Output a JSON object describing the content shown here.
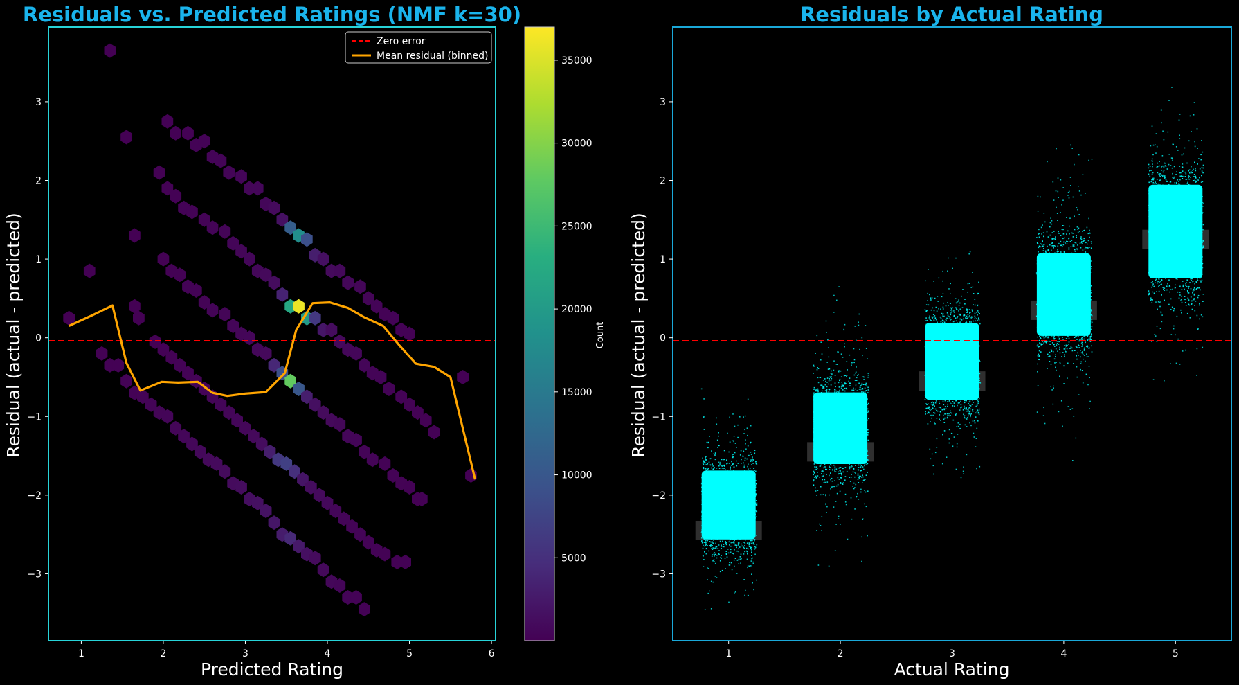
{
  "chart_data": [
    {
      "type": "hexbin",
      "title": "Residuals vs. Predicted Ratings (NMF k=30)",
      "xlabel": "Predicted Rating",
      "ylabel": "Residual (actual - predicted)",
      "xlim": [
        0.6,
        6.05
      ],
      "ylim": [
        -3.85,
        3.95
      ],
      "xticks": [
        1,
        2,
        3,
        4,
        5,
        6
      ],
      "yticks": [
        -3,
        -2,
        -1,
        0,
        1,
        2,
        3
      ],
      "grid": false,
      "legend": {
        "position": "top-right",
        "entries": [
          {
            "label": "Zero error",
            "color": "#ff0000",
            "style": "dashed"
          },
          {
            "label": "Mean residual (binned)",
            "color": "#ffa500",
            "style": "solid"
          }
        ]
      },
      "colorbar": {
        "label": "Count",
        "colormap": "viridis",
        "min": 1,
        "max": 37000,
        "ticks": [
          5000,
          10000,
          15000,
          20000,
          25000,
          30000,
          35000
        ]
      },
      "hex_bins": [
        {
          "x": 2.05,
          "y": 2.75,
          "count": 80
        },
        {
          "x": 2.15,
          "y": 2.6,
          "count": 120
        },
        {
          "x": 2.3,
          "y": 2.6,
          "count": 150
        },
        {
          "x": 2.4,
          "y": 2.45,
          "count": 200
        },
        {
          "x": 2.5,
          "y": 2.5,
          "count": 250
        },
        {
          "x": 2.6,
          "y": 2.3,
          "count": 300
        },
        {
          "x": 2.7,
          "y": 2.25,
          "count": 350
        },
        {
          "x": 2.8,
          "y": 2.1,
          "count": 400
        },
        {
          "x": 2.95,
          "y": 2.05,
          "count": 450
        },
        {
          "x": 3.05,
          "y": 1.9,
          "count": 500
        },
        {
          "x": 3.15,
          "y": 1.9,
          "count": 550
        },
        {
          "x": 3.25,
          "y": 1.7,
          "count": 650
        },
        {
          "x": 3.35,
          "y": 1.65,
          "count": 900
        },
        {
          "x": 3.45,
          "y": 1.5,
          "count": 1600
        },
        {
          "x": 3.55,
          "y": 1.4,
          "count": 11000
        },
        {
          "x": 3.65,
          "y": 1.3,
          "count": 18000
        },
        {
          "x": 3.75,
          "y": 1.25,
          "count": 9000
        },
        {
          "x": 3.85,
          "y": 1.05,
          "count": 3000
        },
        {
          "x": 3.95,
          "y": 1.0,
          "count": 1500
        },
        {
          "x": 4.05,
          "y": 0.85,
          "count": 900
        },
        {
          "x": 4.15,
          "y": 0.85,
          "count": 700
        },
        {
          "x": 4.25,
          "y": 0.7,
          "count": 600
        },
        {
          "x": 4.4,
          "y": 0.65,
          "count": 500
        },
        {
          "x": 4.5,
          "y": 0.5,
          "count": 400
        },
        {
          "x": 4.6,
          "y": 0.4,
          "count": 300
        },
        {
          "x": 4.7,
          "y": 0.3,
          "count": 250
        },
        {
          "x": 4.8,
          "y": 0.25,
          "count": 200
        },
        {
          "x": 4.9,
          "y": 0.1,
          "count": 150
        },
        {
          "x": 5.0,
          "y": 0.05,
          "count": 120
        },
        {
          "x": 1.95,
          "y": 2.1,
          "count": 60
        },
        {
          "x": 2.05,
          "y": 1.9,
          "count": 90
        },
        {
          "x": 2.15,
          "y": 1.8,
          "count": 130
        },
        {
          "x": 2.25,
          "y": 1.65,
          "count": 180
        },
        {
          "x": 2.35,
          "y": 1.6,
          "count": 230
        },
        {
          "x": 2.5,
          "y": 1.5,
          "count": 280
        },
        {
          "x": 2.6,
          "y": 1.4,
          "count": 330
        },
        {
          "x": 2.75,
          "y": 1.35,
          "count": 380
        },
        {
          "x": 2.85,
          "y": 1.2,
          "count": 420
        },
        {
          "x": 2.95,
          "y": 1.1,
          "count": 480
        },
        {
          "x": 3.05,
          "y": 1.0,
          "count": 540
        },
        {
          "x": 3.15,
          "y": 0.85,
          "count": 620
        },
        {
          "x": 3.25,
          "y": 0.8,
          "count": 800
        },
        {
          "x": 3.35,
          "y": 0.7,
          "count": 1200
        },
        {
          "x": 3.45,
          "y": 0.55,
          "count": 3500
        },
        {
          "x": 3.55,
          "y": 0.4,
          "count": 22000
        },
        {
          "x": 3.65,
          "y": 0.4,
          "count": 36000
        },
        {
          "x": 3.75,
          "y": 0.25,
          "count": 20000
        },
        {
          "x": 3.85,
          "y": 0.25,
          "count": 6000
        },
        {
          "x": 3.95,
          "y": 0.1,
          "count": 2200
        },
        {
          "x": 4.05,
          "y": 0.1,
          "count": 1200
        },
        {
          "x": 4.15,
          "y": -0.05,
          "count": 800
        },
        {
          "x": 4.25,
          "y": -0.15,
          "count": 650
        },
        {
          "x": 4.35,
          "y": -0.2,
          "count": 550
        },
        {
          "x": 4.45,
          "y": -0.35,
          "count": 450
        },
        {
          "x": 4.55,
          "y": -0.45,
          "count": 350
        },
        {
          "x": 4.65,
          "y": -0.5,
          "count": 300
        },
        {
          "x": 4.75,
          "y": -0.65,
          "count": 250
        },
        {
          "x": 4.9,
          "y": -0.75,
          "count": 200
        },
        {
          "x": 5.0,
          "y": -0.85,
          "count": 160
        },
        {
          "x": 5.1,
          "y": -0.95,
          "count": 120
        },
        {
          "x": 5.2,
          "y": -1.05,
          "count": 90
        },
        {
          "x": 5.3,
          "y": -1.2,
          "count": 70
        },
        {
          "x": 2.0,
          "y": 1.0,
          "count": 60
        },
        {
          "x": 2.1,
          "y": 0.85,
          "count": 90
        },
        {
          "x": 2.2,
          "y": 0.8,
          "count": 130
        },
        {
          "x": 2.3,
          "y": 0.65,
          "count": 180
        },
        {
          "x": 2.4,
          "y": 0.6,
          "count": 230
        },
        {
          "x": 2.5,
          "y": 0.45,
          "count": 280
        },
        {
          "x": 2.6,
          "y": 0.35,
          "count": 330
        },
        {
          "x": 2.75,
          "y": 0.3,
          "count": 380
        },
        {
          "x": 2.85,
          "y": 0.15,
          "count": 420
        },
        {
          "x": 2.95,
          "y": 0.05,
          "count": 480
        },
        {
          "x": 3.05,
          "y": 0.0,
          "count": 540
        },
        {
          "x": 3.15,
          "y": -0.15,
          "count": 620
        },
        {
          "x": 3.25,
          "y": -0.2,
          "count": 800
        },
        {
          "x": 3.35,
          "y": -0.35,
          "count": 4000
        },
        {
          "x": 3.45,
          "y": -0.45,
          "count": 9000
        },
        {
          "x": 3.55,
          "y": -0.55,
          "count": 28000
        },
        {
          "x": 3.65,
          "y": -0.65,
          "count": 10000
        },
        {
          "x": 3.75,
          "y": -0.75,
          "count": 3000
        },
        {
          "x": 3.85,
          "y": -0.85,
          "count": 1500
        },
        {
          "x": 3.95,
          "y": -0.95,
          "count": 1000
        },
        {
          "x": 4.05,
          "y": -1.05,
          "count": 800
        },
        {
          "x": 4.15,
          "y": -1.1,
          "count": 650
        },
        {
          "x": 4.25,
          "y": -1.25,
          "count": 550
        },
        {
          "x": 4.35,
          "y": -1.3,
          "count": 450
        },
        {
          "x": 4.45,
          "y": -1.45,
          "count": 350
        },
        {
          "x": 4.55,
          "y": -1.55,
          "count": 300
        },
        {
          "x": 4.7,
          "y": -1.6,
          "count": 250
        },
        {
          "x": 4.8,
          "y": -1.75,
          "count": 200
        },
        {
          "x": 4.9,
          "y": -1.85,
          "count": 160
        },
        {
          "x": 5.0,
          "y": -1.9,
          "count": 120
        },
        {
          "x": 5.15,
          "y": -2.05,
          "count": 80
        },
        {
          "x": 1.9,
          "y": -0.05,
          "count": 60
        },
        {
          "x": 2.0,
          "y": -0.15,
          "count": 90
        },
        {
          "x": 2.1,
          "y": -0.25,
          "count": 130
        },
        {
          "x": 2.2,
          "y": -0.35,
          "count": 180
        },
        {
          "x": 2.3,
          "y": -0.45,
          "count": 230
        },
        {
          "x": 2.4,
          "y": -0.55,
          "count": 280
        },
        {
          "x": 2.5,
          "y": -0.65,
          "count": 330
        },
        {
          "x": 2.6,
          "y": -0.75,
          "count": 380
        },
        {
          "x": 2.7,
          "y": -0.85,
          "count": 420
        },
        {
          "x": 2.8,
          "y": -0.95,
          "count": 480
        },
        {
          "x": 2.9,
          "y": -1.05,
          "count": 540
        },
        {
          "x": 3.0,
          "y": -1.15,
          "count": 620
        },
        {
          "x": 3.1,
          "y": -1.25,
          "count": 800
        },
        {
          "x": 3.2,
          "y": -1.35,
          "count": 1200
        },
        {
          "x": 3.3,
          "y": -1.45,
          "count": 3000
        },
        {
          "x": 3.4,
          "y": -1.55,
          "count": 6000
        },
        {
          "x": 3.5,
          "y": -1.6,
          "count": 7000
        },
        {
          "x": 3.6,
          "y": -1.7,
          "count": 5000
        },
        {
          "x": 3.7,
          "y": -1.8,
          "count": 2000
        },
        {
          "x": 3.8,
          "y": -1.9,
          "count": 1200
        },
        {
          "x": 3.9,
          "y": -2.0,
          "count": 900
        },
        {
          "x": 4.0,
          "y": -2.1,
          "count": 700
        },
        {
          "x": 4.1,
          "y": -2.2,
          "count": 550
        },
        {
          "x": 4.2,
          "y": -2.3,
          "count": 450
        },
        {
          "x": 4.3,
          "y": -2.4,
          "count": 350
        },
        {
          "x": 4.4,
          "y": -2.5,
          "count": 300
        },
        {
          "x": 4.5,
          "y": -2.6,
          "count": 250
        },
        {
          "x": 4.6,
          "y": -2.7,
          "count": 200
        },
        {
          "x": 4.7,
          "y": -2.75,
          "count": 160
        },
        {
          "x": 4.85,
          "y": -2.85,
          "count": 120
        },
        {
          "x": 4.95,
          "y": -2.85,
          "count": 90
        },
        {
          "x": 1.25,
          "y": -0.2,
          "count": 60
        },
        {
          "x": 1.35,
          "y": -0.35,
          "count": 90
        },
        {
          "x": 1.45,
          "y": -0.35,
          "count": 130
        },
        {
          "x": 1.55,
          "y": -0.55,
          "count": 180
        },
        {
          "x": 1.65,
          "y": -0.7,
          "count": 230
        },
        {
          "x": 1.75,
          "y": -0.75,
          "count": 280
        },
        {
          "x": 1.85,
          "y": -0.85,
          "count": 330
        },
        {
          "x": 1.95,
          "y": -0.95,
          "count": 380
        },
        {
          "x": 2.05,
          "y": -1.0,
          "count": 420
        },
        {
          "x": 2.15,
          "y": -1.15,
          "count": 480
        },
        {
          "x": 2.25,
          "y": -1.25,
          "count": 540
        },
        {
          "x": 2.35,
          "y": -1.35,
          "count": 620
        },
        {
          "x": 2.45,
          "y": -1.45,
          "count": 700
        },
        {
          "x": 2.55,
          "y": -1.55,
          "count": 800
        },
        {
          "x": 2.65,
          "y": -1.6,
          "count": 900
        },
        {
          "x": 2.75,
          "y": -1.7,
          "count": 1000
        },
        {
          "x": 2.85,
          "y": -1.85,
          "count": 1100
        },
        {
          "x": 2.95,
          "y": -1.9,
          "count": 1200
        },
        {
          "x": 3.05,
          "y": -2.05,
          "count": 1400
        },
        {
          "x": 3.15,
          "y": -2.1,
          "count": 1600
        },
        {
          "x": 3.25,
          "y": -2.2,
          "count": 1800
        },
        {
          "x": 3.35,
          "y": -2.35,
          "count": 2200
        },
        {
          "x": 3.45,
          "y": -2.5,
          "count": 2800
        },
        {
          "x": 3.55,
          "y": -2.55,
          "count": 4200
        },
        {
          "x": 3.65,
          "y": -2.65,
          "count": 2500
        },
        {
          "x": 3.75,
          "y": -2.75,
          "count": 1500
        },
        {
          "x": 3.85,
          "y": -2.8,
          "count": 1000
        },
        {
          "x": 3.95,
          "y": -2.95,
          "count": 800
        },
        {
          "x": 4.05,
          "y": -3.1,
          "count": 600
        },
        {
          "x": 4.15,
          "y": -3.15,
          "count": 450
        },
        {
          "x": 4.25,
          "y": -3.3,
          "count": 350
        },
        {
          "x": 4.35,
          "y": -3.3,
          "count": 250
        },
        {
          "x": 4.45,
          "y": -3.45,
          "count": 150
        },
        {
          "x": 1.35,
          "y": 3.65,
          "count": 30
        },
        {
          "x": 1.55,
          "y": 2.55,
          "count": 40
        },
        {
          "x": 1.1,
          "y": 0.85,
          "count": 40
        },
        {
          "x": 1.65,
          "y": 1.3,
          "count": 40
        },
        {
          "x": 0.85,
          "y": 0.25,
          "count": 40
        },
        {
          "x": 1.65,
          "y": 0.4,
          "count": 40
        },
        {
          "x": 1.7,
          "y": 0.25,
          "count": 40
        },
        {
          "x": 5.1,
          "y": -2.05,
          "count": 40
        },
        {
          "x": 5.65,
          "y": -0.5,
          "count": 40
        },
        {
          "x": 5.75,
          "y": -1.75,
          "count": 40
        }
      ],
      "series": [
        {
          "name": "Mean residual (binned)",
          "x": [
            0.85,
            1.12,
            1.38,
            1.55,
            1.72,
            1.98,
            2.18,
            2.42,
            2.6,
            2.78,
            3.0,
            3.25,
            3.48,
            3.62,
            3.82,
            4.03,
            4.25,
            4.45,
            4.68,
            4.88,
            5.08,
            5.3,
            5.5,
            5.8
          ],
          "y": [
            0.15,
            0.28,
            0.41,
            -0.32,
            -0.67,
            -0.56,
            -0.57,
            -0.56,
            -0.7,
            -0.74,
            -0.71,
            -0.69,
            -0.45,
            0.1,
            0.44,
            0.45,
            0.38,
            0.26,
            0.15,
            -0.1,
            -0.33,
            -0.37,
            -0.5,
            -1.8
          ]
        }
      ],
      "reference_line": {
        "name": "Zero error",
        "y": 0
      }
    },
    {
      "type": "strip",
      "title": "Residuals by Actual Rating",
      "xlabel": "Actual Rating",
      "ylabel": "Residual (actual - predicted)",
      "categories": [
        "1",
        "2",
        "3",
        "4",
        "5"
      ],
      "xlim": [
        0.5,
        5.5
      ],
      "ylim": [
        -3.85,
        3.95
      ],
      "yticks": [
        -3,
        -2,
        -1,
        0,
        1,
        2,
        3
      ],
      "grid": false,
      "point_color": "#00ffff",
      "series": [
        {
          "category": "1",
          "mean": -2.45,
          "core": [
            -2.75,
            -1.5
          ],
          "spread": [
            -3.45,
            -0.3
          ]
        },
        {
          "category": "2",
          "mean": -1.45,
          "core": [
            -1.8,
            -0.5
          ],
          "spread": [
            -2.95,
            0.9
          ]
        },
        {
          "category": "3",
          "mean": -0.55,
          "core": [
            -1.0,
            0.4
          ],
          "spread": [
            -2.15,
            1.3
          ]
        },
        {
          "category": "4",
          "mean": 0.35,
          "core": [
            -0.2,
            1.3
          ],
          "spread": [
            -1.85,
            2.5
          ]
        },
        {
          "category": "5",
          "mean": 1.25,
          "core": [
            0.5,
            2.2
          ],
          "spread": [
            -0.6,
            3.65
          ]
        }
      ],
      "reference_line": {
        "y": 0
      }
    }
  ]
}
